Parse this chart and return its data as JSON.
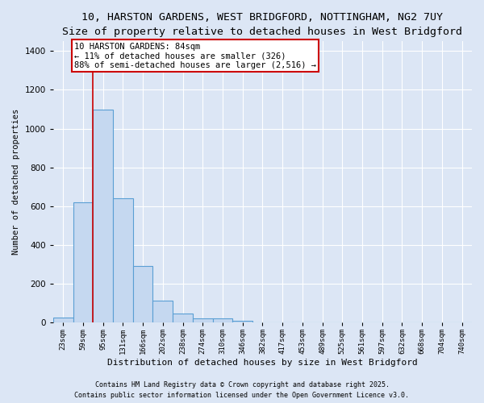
{
  "title1": "10, HARSTON GARDENS, WEST BRIDGFORD, NOTTINGHAM, NG2 7UY",
  "title2": "Size of property relative to detached houses in West Bridgford",
  "xlabel": "Distribution of detached houses by size in West Bridgford",
  "ylabel": "Number of detached properties",
  "categories": [
    "23sqm",
    "59sqm",
    "95sqm",
    "131sqm",
    "166sqm",
    "202sqm",
    "238sqm",
    "274sqm",
    "310sqm",
    "346sqm",
    "382sqm",
    "417sqm",
    "453sqm",
    "489sqm",
    "525sqm",
    "561sqm",
    "597sqm",
    "632sqm",
    "668sqm",
    "704sqm",
    "740sqm"
  ],
  "values": [
    25,
    620,
    1100,
    640,
    290,
    115,
    45,
    20,
    20,
    10,
    0,
    0,
    0,
    0,
    0,
    0,
    0,
    0,
    0,
    0,
    0
  ],
  "bar_color": "#c5d8f0",
  "bar_edge_color": "#5a9fd4",
  "annotation_line1": "10 HARSTON GARDENS: 84sqm",
  "annotation_line2": "← 11% of detached houses are smaller (326)",
  "annotation_line3": "88% of semi-detached houses are larger (2,516) →",
  "annotation_box_color": "#ffffff",
  "annotation_box_edge": "#cc0000",
  "vline_color": "#cc0000",
  "ylim": [
    0,
    1450
  ],
  "yticks": [
    0,
    200,
    400,
    600,
    800,
    1000,
    1200,
    1400
  ],
  "bg_color": "#dce6f5",
  "grid_color": "#ffffff",
  "footer1": "Contains HM Land Registry data © Crown copyright and database right 2025.",
  "footer2": "Contains public sector information licensed under the Open Government Licence v3.0.",
  "title_fontsize": 9.5,
  "subtitle_fontsize": 8.5,
  "bar_width": 1.0
}
